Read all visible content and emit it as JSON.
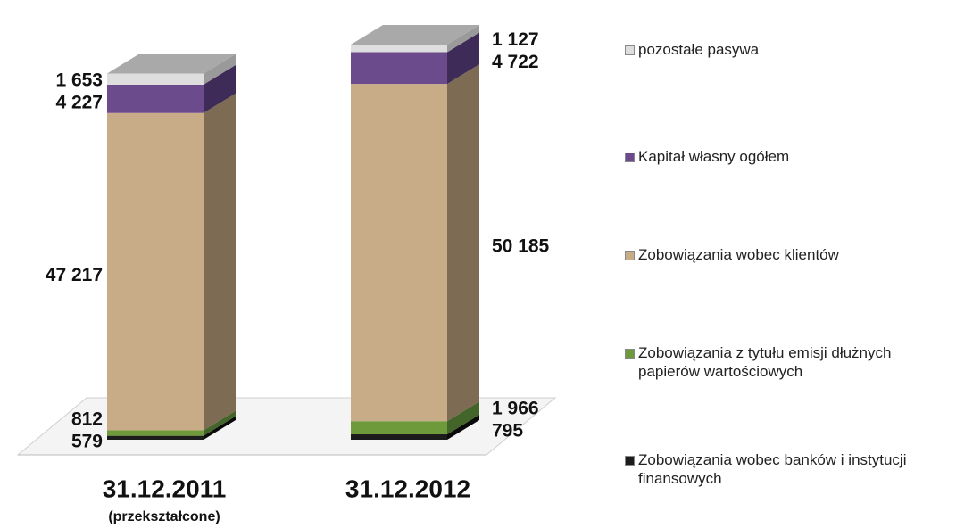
{
  "chart_data": {
    "type": "stacked-bar-3d",
    "categories": [
      "31.12.2011",
      "31.12.2012"
    ],
    "category_note": "(przekształcone)",
    "series": [
      {
        "name": "Zobowiązania wobec banków i instytucji finansowych",
        "color": "#1c1c1c",
        "side": "#0a0a0a",
        "values": [
          579,
          795
        ],
        "value_labels": [
          "579",
          "795"
        ]
      },
      {
        "name": "Zobowiązania z tytułu emisji dłużnych papierów wartościowych",
        "color": "#6f9a3c",
        "side": "#44652a",
        "values": [
          812,
          1966
        ],
        "value_labels": [
          "812",
          "1 966"
        ]
      },
      {
        "name": "Zobowiązania wobec klientów",
        "color": "#c8ac88",
        "side": "#7e6b53",
        "values": [
          47217,
          50185
        ],
        "value_labels": [
          "47 217",
          "50 185"
        ]
      },
      {
        "name": "Kapitał własny ogółem",
        "color": "#6c4b8c",
        "side": "#3e2b57",
        "values": [
          4227,
          4722
        ],
        "value_labels": [
          "4 227",
          "4 722"
        ]
      },
      {
        "name": "pozostałe pasywa",
        "color": "#dedede",
        "side": "#9a9a9a",
        "values": [
          1653,
          1127
        ],
        "value_labels": [
          "1 653",
          "1 127"
        ]
      }
    ]
  }
}
